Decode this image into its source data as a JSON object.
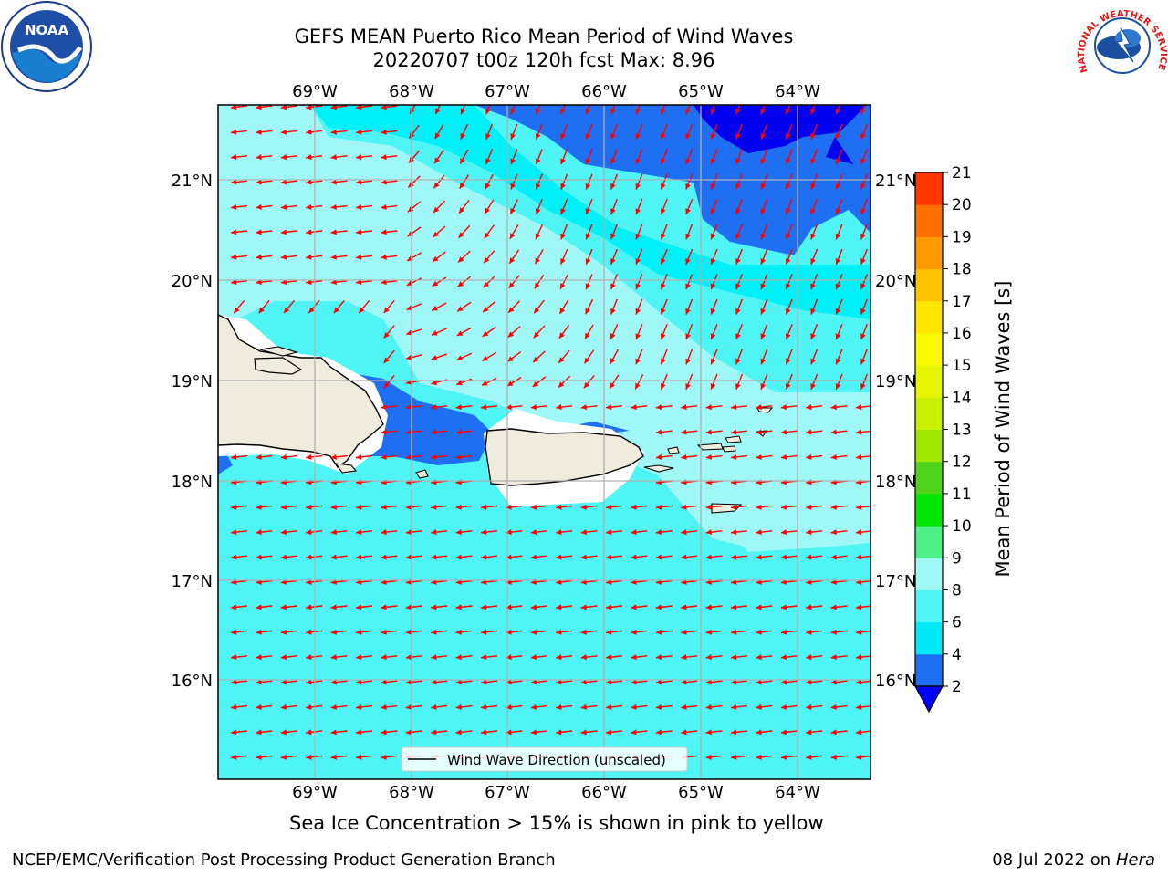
{
  "title_line1": "GEFS MEAN Puerto Rico Mean Period of Wind Waves",
  "title_line2": "20220707 t00z 120h fcst   Max: 8.96",
  "lon_labels": [
    "69°W",
    "68°W",
    "67°W",
    "66°W",
    "65°W",
    "64°W"
  ],
  "lat_labels": [
    "21°N",
    "20°N",
    "19°N",
    "18°N",
    "17°N",
    "16°N"
  ],
  "legend_label": "Wind Wave Direction (unscaled)",
  "colorbar": {
    "label": "Mean Period of Wind Waves [s]",
    "ticks": [
      "2",
      "4",
      "6",
      "8",
      "9",
      "10",
      "11",
      "12",
      "13",
      "14",
      "15",
      "16",
      "17",
      "18",
      "19",
      "20",
      "21"
    ],
    "colors": [
      "#1f6ff2",
      "#00e8f5",
      "#4ff4f4",
      "#9ff8f6",
      "#4cf286",
      "#00e600",
      "#4ed21a",
      "#9fe600",
      "#c8f000",
      "#e6f500",
      "#fafa00",
      "#ffe600",
      "#ffc300",
      "#ff9b00",
      "#ff6e00",
      "#ff3700",
      "#ff0000"
    ],
    "under_color": "#0000ff"
  },
  "subnote": "Sea Ice Concentration > 15% is shown in pink to yellow",
  "footer_left": "NCEP/EMC/Verification Post Processing Product Generation Branch",
  "footer_right_date": "08 Jul 2022 on ",
  "footer_right_host": "Hera",
  "logos": {
    "left": "NOAA",
    "right": "NATIONAL WEATHER SERVICE"
  },
  "palette": {
    "ocean_light": "#9ff8f6",
    "ocean_mid": "#4ff4f4",
    "ocean_cyan": "#00f0f8",
    "ocean_blue": "#1f6ff2",
    "ocean_deep": "#0000f0",
    "land": "#efebdd",
    "arrow": "#ff0000"
  }
}
